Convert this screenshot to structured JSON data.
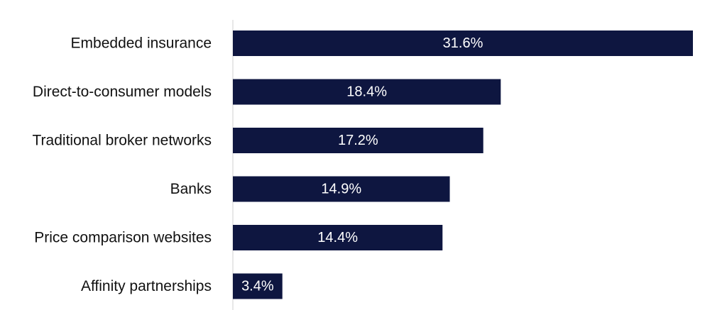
{
  "chart_data": {
    "type": "bar",
    "orientation": "horizontal",
    "categories": [
      "Embedded insurance",
      "Direct-to-consumer models",
      "Traditional broker networks",
      "Banks",
      "Price comparison websites",
      "Affinity partnerships"
    ],
    "values": [
      31.6,
      18.4,
      17.2,
      14.9,
      14.4,
      3.4
    ],
    "value_labels": [
      "31.6%",
      "18.4%",
      "17.2%",
      "14.9%",
      "14.4%",
      "3.4%"
    ],
    "title": "",
    "xlabel": "",
    "ylabel": "",
    "xlim": [
      0,
      31.6
    ],
    "grid": false,
    "legend": "none",
    "colors": {
      "bar": "#0e1640",
      "axis": "#d0d0d0",
      "label_text": "#111111",
      "value_text": "#ffffff"
    }
  }
}
